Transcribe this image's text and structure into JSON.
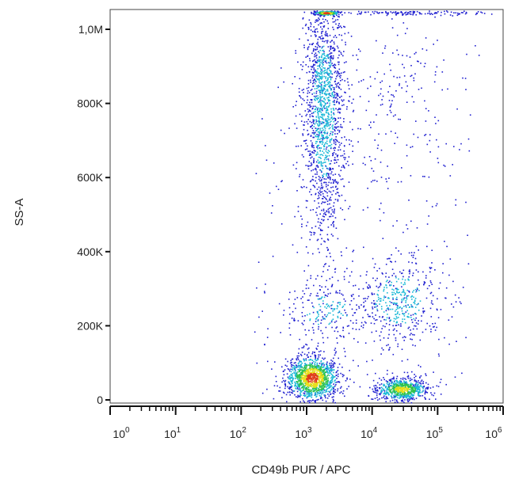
{
  "chart_data": {
    "type": "scatter",
    "title": "",
    "xlabel": "CD49b PUR / APC",
    "ylabel": "SS-A",
    "x_scale": "log",
    "xlim": [
      1,
      1000000
    ],
    "ylim": [
      0,
      1050000
    ],
    "grid": false,
    "legend": "none",
    "colormap": "density: blue to cyan to green to yellow to red",
    "x_ticks": [
      {
        "base": "10",
        "exp": "0",
        "value": 1
      },
      {
        "base": "10",
        "exp": "1",
        "value": 10
      },
      {
        "base": "10",
        "exp": "2",
        "value": 100
      },
      {
        "base": "10",
        "exp": "3",
        "value": 1000
      },
      {
        "base": "10",
        "exp": "4",
        "value": 10000
      },
      {
        "base": "10",
        "exp": "5",
        "value": 100000
      },
      {
        "base": "10",
        "exp": "6",
        "value": 1000000
      }
    ],
    "y_ticks": [
      {
        "label": "0",
        "value": 0
      },
      {
        "label": "200K",
        "value": 200000
      },
      {
        "label": "400K",
        "value": 400000
      },
      {
        "label": "600K",
        "value": 600000
      },
      {
        "label": "800K",
        "value": 800000
      },
      {
        "label": "1,0M",
        "value": 1000000
      }
    ],
    "populations": [
      {
        "x_center": 1200,
        "x_spread_decades": 0.2,
        "y_center": 60000,
        "y_spread": 30000,
        "points": 1300,
        "peak_density": "red"
      },
      {
        "x_center": 28000,
        "x_spread_decades": 0.2,
        "y_center": 30000,
        "y_spread": 15000,
        "points": 700,
        "peak_density": "yellow"
      },
      {
        "x_center": 1800,
        "x_spread_decades": 0.15,
        "y_center": 780000,
        "y_spread": 170000,
        "points": 1500,
        "peak_density": "cyan"
      },
      {
        "x_center": 25000,
        "x_spread_decades": 0.35,
        "y_center": 270000,
        "y_spread": 60000,
        "points": 450,
        "peak_density": "cyan"
      },
      {
        "x_center": 2000,
        "x_spread_decades": 0.3,
        "y_center": 240000,
        "y_spread": 40000,
        "points": 200,
        "peak_density": "cyan"
      },
      {
        "x_center": 20000,
        "x_spread_decades": 0.45,
        "y_center": 800000,
        "y_spread": 130000,
        "points": 160,
        "peak_density": "blue"
      },
      {
        "x_center": 2000,
        "x_spread_decades": 0.1,
        "y_center": 1045000,
        "y_spread": 3000,
        "points": 220,
        "peak_density": "red"
      },
      {
        "x_center": 40000,
        "x_spread_decades": 0.6,
        "y_center": 1045000,
        "y_spread": 3000,
        "points": 120,
        "peak_density": "blue"
      }
    ]
  }
}
